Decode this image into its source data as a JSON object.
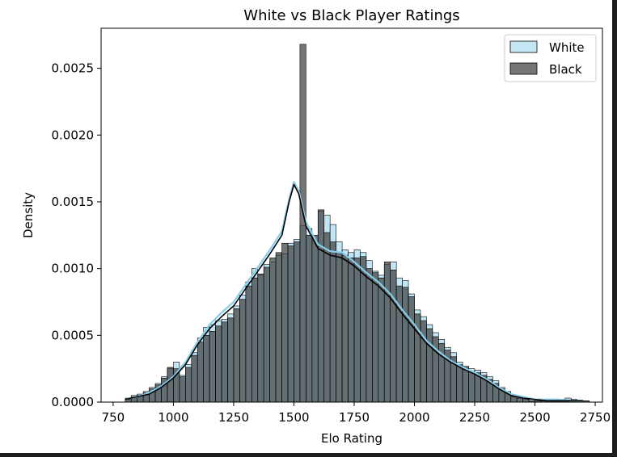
{
  "chart_data": {
    "type": "histogram",
    "title": "White vs Black Player Ratings",
    "xlabel": "Elo Rating",
    "ylabel": "Density",
    "xlim": [
      700,
      2780
    ],
    "ylim": [
      0,
      0.0028
    ],
    "xticks": [
      750,
      1000,
      1250,
      1500,
      1750,
      2000,
      2250,
      2500,
      2750
    ],
    "xtick_labels": [
      "750",
      "1000",
      "1250",
      "1500",
      "1750",
      "2000",
      "2250",
      "2500",
      "2750"
    ],
    "yticks": [
      0,
      0.0005,
      0.001,
      0.0015,
      0.002,
      0.0025
    ],
    "ytick_labels": [
      "0.0000",
      "0.0005",
      "0.0010",
      "0.0015",
      "0.0020",
      "0.0025"
    ],
    "legend_position": "top-right",
    "grid": false,
    "bin_start": 800,
    "bin_width": 25,
    "series": [
      {
        "name": "White",
        "color": "#87ceeb",
        "values": [
          3e-05,
          5e-05,
          6e-05,
          8e-05,
          0.00011,
          0.00014,
          0.00019,
          0.00025,
          0.0003,
          0.0002,
          0.00028,
          0.00037,
          0.00048,
          0.00056,
          0.00058,
          0.00061,
          0.00062,
          0.00066,
          0.00072,
          0.0008,
          0.0009,
          0.001,
          0.00095,
          0.00103,
          0.00105,
          0.0011,
          0.00111,
          0.00119,
          0.00122,
          0.00132,
          0.0013,
          0.00121,
          0.00143,
          0.0014,
          0.00133,
          0.0012,
          0.00114,
          0.00112,
          0.00114,
          0.00112,
          0.00106,
          0.00098,
          0.00095,
          0.00103,
          0.00105,
          0.00093,
          0.00091,
          0.00081,
          0.00069,
          0.00064,
          0.00058,
          0.00052,
          0.00047,
          0.00041,
          0.00037,
          0.0003,
          0.00027,
          0.00025,
          0.00024,
          0.00022,
          0.00019,
          0.00016,
          0.00011,
          8e-05,
          5e-05,
          4e-05,
          3e-05,
          2e-05,
          2e-05,
          1e-05,
          1e-05,
          1e-05,
          2e-05,
          3e-05,
          2e-05,
          1e-05,
          1e-05,
          0.0
        ]
      },
      {
        "name": "Black",
        "color": "#3a3a3a",
        "values": [
          2e-05,
          4e-05,
          5e-05,
          7e-05,
          0.0001,
          0.00013,
          0.00018,
          0.00026,
          0.00025,
          0.00019,
          0.00026,
          0.00035,
          0.00045,
          0.0005,
          0.00053,
          0.00057,
          0.0006,
          0.00063,
          0.0007,
          0.00077,
          0.00087,
          0.00093,
          0.00096,
          0.00101,
          0.00108,
          0.00112,
          0.00119,
          0.00117,
          0.0012,
          0.00268,
          0.00125,
          0.00125,
          0.00144,
          0.00127,
          0.0012,
          0.00112,
          0.0011,
          0.00108,
          0.00108,
          0.00109,
          0.001,
          0.00097,
          0.00093,
          0.00105,
          0.00099,
          0.00087,
          0.00086,
          0.00079,
          0.00066,
          0.00061,
          0.00055,
          0.00049,
          0.00044,
          0.00039,
          0.00034,
          0.00028,
          0.00026,
          0.00023,
          0.00022,
          0.0002,
          0.00017,
          0.00014,
          0.0001,
          7e-05,
          4e-05,
          3e-05,
          2e-05,
          1e-05,
          1e-05,
          1e-05,
          1e-05,
          1e-05,
          2e-05,
          1e-05,
          1e-05,
          1e-05,
          1e-05,
          0.0
        ]
      }
    ],
    "kde": [
      {
        "name": "White",
        "color": "#87ceeb",
        "x": [
          800,
          850,
          900,
          950,
          1000,
          1050,
          1100,
          1150,
          1200,
          1250,
          1300,
          1350,
          1400,
          1450,
          1480,
          1500,
          1520,
          1550,
          1600,
          1650,
          1700,
          1750,
          1800,
          1850,
          1900,
          1950,
          2000,
          2050,
          2100,
          2150,
          2200,
          2250,
          2300,
          2350,
          2400,
          2450,
          2500,
          2550,
          2600,
          2650,
          2700
        ],
        "y": [
          2e-05,
          4e-05,
          7e-05,
          0.00012,
          0.00019,
          0.0003,
          0.00045,
          0.00058,
          0.00067,
          0.00075,
          0.00088,
          0.00101,
          0.00114,
          0.00128,
          0.00152,
          0.00165,
          0.00158,
          0.00135,
          0.00118,
          0.00113,
          0.00112,
          0.00105,
          0.00097,
          0.0009,
          0.00081,
          0.00069,
          0.00058,
          0.00046,
          0.00038,
          0.00031,
          0.00026,
          0.00022,
          0.00017,
          0.00011,
          6e-05,
          4e-05,
          2e-05,
          2e-05,
          2e-05,
          1e-05,
          1e-05
        ]
      },
      {
        "name": "Black",
        "color": "#000000",
        "x": [
          800,
          850,
          900,
          950,
          1000,
          1050,
          1100,
          1150,
          1200,
          1250,
          1300,
          1350,
          1400,
          1450,
          1480,
          1500,
          1520,
          1550,
          1600,
          1650,
          1700,
          1750,
          1800,
          1850,
          1900,
          1950,
          2000,
          2050,
          2100,
          2150,
          2200,
          2250,
          2300,
          2350,
          2400,
          2450,
          2500,
          2550,
          2600,
          2650,
          2700
        ],
        "y": [
          2e-05,
          4e-05,
          6e-05,
          0.00011,
          0.00018,
          0.00028,
          0.00043,
          0.00055,
          0.00064,
          0.00072,
          0.00085,
          0.00098,
          0.00111,
          0.00125,
          0.0015,
          0.00163,
          0.00156,
          0.00132,
          0.00115,
          0.0011,
          0.00108,
          0.00102,
          0.00094,
          0.00087,
          0.00078,
          0.00066,
          0.00055,
          0.00044,
          0.00036,
          0.0003,
          0.00025,
          0.00021,
          0.00016,
          0.0001,
          5e-05,
          3e-05,
          2e-05,
          1e-05,
          1e-05,
          1e-05,
          1e-05
        ]
      }
    ]
  }
}
